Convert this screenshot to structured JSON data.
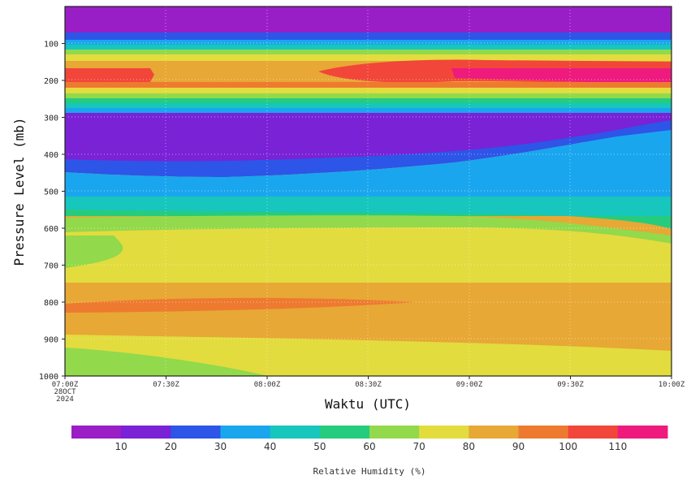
{
  "chart_data": {
    "type": "heatmap",
    "title": "",
    "xlabel": "Waktu (UTC)",
    "ylabel": "Pressure Level (mb)",
    "x_ticks": [
      "07:00Z",
      "07:30Z",
      "08:00Z",
      "08:30Z",
      "09:00Z",
      "09:30Z",
      "10:00Z"
    ],
    "x_start_label": [
      "07:00Z",
      "28OCT",
      "2024"
    ],
    "x_range": [
      "07:00Z",
      "10:00Z"
    ],
    "y_ticks": [
      100,
      200,
      300,
      400,
      500,
      600,
      700,
      800,
      900,
      1000
    ],
    "y_range": [
      1000,
      0
    ],
    "colorbar": {
      "label": "Relative Humidity (%)",
      "ticks": [
        10,
        20,
        30,
        40,
        50,
        60,
        70,
        80,
        90,
        100,
        110
      ],
      "bins": [
        {
          "range": "<10",
          "color": "#9A1EC6"
        },
        {
          "range": "10-20",
          "color": "#7A22D6"
        },
        {
          "range": "20-30",
          "color": "#2D55E8"
        },
        {
          "range": "30-40",
          "color": "#1AA6EE"
        },
        {
          "range": "40-50",
          "color": "#17C6BC"
        },
        {
          "range": "50-60",
          "color": "#26CC7E"
        },
        {
          "range": "60-70",
          "color": "#92D94C"
        },
        {
          "range": "70-80",
          "color": "#E3DC3E"
        },
        {
          "range": "80-90",
          "color": "#E7A835"
        },
        {
          "range": "90-100",
          "color": "#EE7A30"
        },
        {
          "range": "100-110",
          "color": "#F2463A"
        },
        {
          "range": ">110",
          "color": "#EE1A7E"
        }
      ]
    },
    "approx_field_by_pressure_mb": [
      {
        "p": 50,
        "rh": "<10"
      },
      {
        "p": 90,
        "rh": "30-50"
      },
      {
        "p": 110,
        "rh": "70-80"
      },
      {
        "p": 130,
        "rh": "80-90"
      },
      {
        "p": 185,
        "rh": "90-110"
      },
      {
        "p": 235,
        "rh": "70-90"
      },
      {
        "p": 260,
        "rh": "40-60"
      },
      {
        "p": 330,
        "rh": "<20"
      },
      {
        "p": 440,
        "rh": "20-30"
      },
      {
        "p": 500,
        "rh": "30-40"
      },
      {
        "p": 560,
        "rh": "50-60"
      },
      {
        "p": 640,
        "rh": "70-80"
      },
      {
        "p": 800,
        "rh": "80-100"
      },
      {
        "p": 900,
        "rh": "70-80"
      },
      {
        "p": 960,
        "rh": "60-70"
      }
    ]
  }
}
